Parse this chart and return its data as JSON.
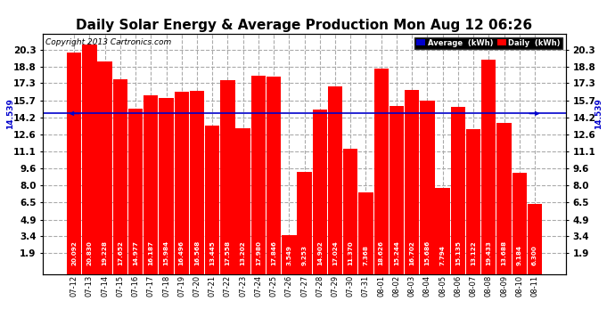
{
  "title": "Daily Solar Energy & Average Production Mon Aug 12 06:26",
  "copyright": "Copyright 2013 Cartronics.com",
  "categories": [
    "07-12",
    "07-13",
    "07-14",
    "07-15",
    "07-16",
    "07-17",
    "07-18",
    "07-19",
    "07-20",
    "07-21",
    "07-22",
    "07-23",
    "07-24",
    "07-25",
    "07-26",
    "07-27",
    "07-28",
    "07-29",
    "07-30",
    "07-31",
    "08-01",
    "08-02",
    "08-03",
    "08-04",
    "08-05",
    "08-06",
    "08-07",
    "08-08",
    "08-09",
    "08-10",
    "08-11"
  ],
  "values": [
    20.092,
    20.83,
    19.228,
    17.652,
    14.977,
    16.187,
    15.984,
    16.496,
    16.568,
    13.445,
    17.558,
    13.202,
    17.98,
    17.846,
    3.549,
    9.253,
    14.902,
    17.024,
    11.37,
    7.368,
    18.626,
    15.244,
    16.702,
    15.686,
    7.794,
    15.135,
    13.122,
    19.433,
    13.688,
    9.184,
    6.3
  ],
  "average": 14.539,
  "bar_color": "#ff0000",
  "average_line_color": "#0000cc",
  "ylim_min": 0,
  "ylim_max": 21.8,
  "yticks": [
    1.9,
    3.4,
    4.9,
    6.5,
    8.0,
    9.6,
    11.1,
    12.6,
    14.2,
    15.7,
    17.3,
    18.8,
    20.3
  ],
  "background_color": "#ffffff",
  "grid_color": "#aaaaaa",
  "title_fontsize": 11,
  "bar_label_fontsize": 5.2,
  "legend_avg_color": "#0000cc",
  "legend_daily_color": "#ff0000",
  "avg_label": "14.539",
  "avg_label_fontsize": 6.5,
  "ytick_fontsize": 7.5,
  "xtick_fontsize": 6.0,
  "copyright_fontsize": 6.5
}
